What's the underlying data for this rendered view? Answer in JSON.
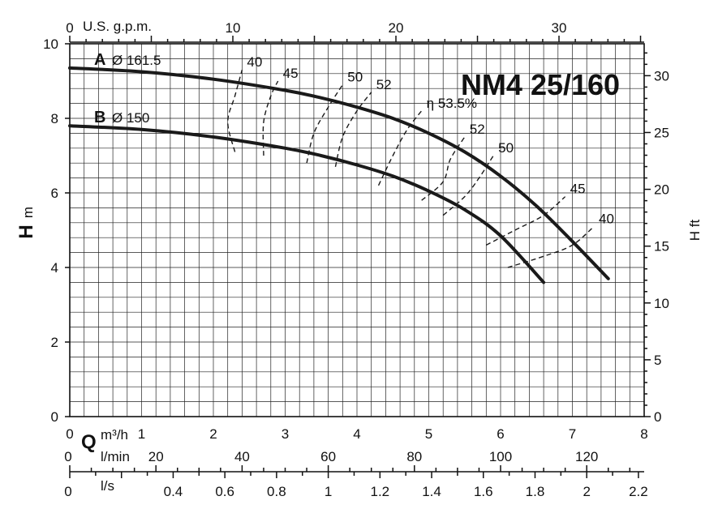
{
  "chart_data": {
    "type": "line",
    "title": "NM4 25/160",
    "x_axis": {
      "label_symbol": "Q",
      "unit": "m³/h",
      "range": [
        0,
        8
      ],
      "ticks": [
        0,
        1,
        2,
        3,
        4,
        5,
        6,
        7,
        8
      ],
      "tick_labels": [
        "0",
        "1",
        "2",
        "3",
        "4",
        "5",
        "6",
        "7",
        "8"
      ]
    },
    "y_axis": {
      "label_symbol": "H",
      "unit": "m",
      "range": [
        0,
        10
      ],
      "ticks": [
        0,
        2,
        4,
        6,
        8,
        10
      ],
      "tick_labels": [
        "0",
        "2",
        "4",
        "6",
        "8",
        "10"
      ]
    },
    "y2_axis": {
      "label": "H ft",
      "ticks": [
        0,
        5,
        10,
        15,
        20,
        25,
        30
      ],
      "tick_labels": [
        "0",
        "5",
        "10",
        "15",
        "20",
        "25",
        "30"
      ]
    },
    "top_axis": {
      "label": "U.S. g.p.m.",
      "ticks": [
        0,
        10,
        20,
        30
      ],
      "tick_labels": [
        "0",
        "10",
        "20",
        "30"
      ]
    },
    "lmin_axis": {
      "label": "l/min",
      "ticks": [
        0,
        20,
        40,
        60,
        80,
        100,
        120
      ],
      "tick_labels": [
        "0",
        "20",
        "40",
        "60",
        "80",
        "100",
        "120"
      ]
    },
    "ls_axis": {
      "label": "l/s",
      "ticks": [
        0,
        0.4,
        0.6,
        0.8,
        1,
        1.2,
        1.4,
        1.6,
        1.8,
        2,
        2.2
      ],
      "tick_labels": [
        "0",
        "0.4",
        "0.6",
        "0.8",
        "1",
        "1.2",
        "1.4",
        "1.6",
        "1.8",
        "2",
        "2.2"
      ]
    },
    "grid": true,
    "series": [
      {
        "name": "A",
        "diameter_label": "Ø 161.5",
        "x": [
          0,
          1,
          2,
          3,
          3.5,
          4,
          4.5,
          5,
          5.5,
          6,
          6.5,
          7,
          7.5
        ],
        "y": [
          9.35,
          9.25,
          9.05,
          8.75,
          8.55,
          8.3,
          8.0,
          7.6,
          7.1,
          6.45,
          5.65,
          4.7,
          3.7
        ]
      },
      {
        "name": "B",
        "diameter_label": "Ø 150",
        "x": [
          0,
          1,
          2,
          3,
          3.5,
          4,
          4.5,
          5,
          5.5,
          6,
          6.6
        ],
        "y": [
          7.8,
          7.7,
          7.5,
          7.2,
          7.0,
          6.75,
          6.45,
          6.05,
          5.55,
          4.85,
          3.6
        ]
      }
    ],
    "efficiency_curves": [
      {
        "label": "40",
        "x": [
          2.3,
          2.2,
          2.3,
          2.4
        ],
        "y": [
          7.1,
          7.9,
          8.6,
          9.3
        ]
      },
      {
        "label": "45",
        "x": [
          2.7,
          2.7,
          2.8,
          2.9
        ],
        "y": [
          7.0,
          7.9,
          8.6,
          9.0
        ]
      },
      {
        "label": "50",
        "x": [
          3.3,
          3.4,
          3.6,
          3.8
        ],
        "y": [
          6.8,
          7.6,
          8.3,
          8.9
        ]
      },
      {
        "label": "52",
        "x": [
          3.7,
          3.8,
          4.0,
          4.2
        ],
        "y": [
          6.7,
          7.5,
          8.2,
          8.7
        ]
      },
      {
        "label": "η 53.5%",
        "x": [
          4.3,
          4.5,
          4.7,
          4.9
        ],
        "y": [
          6.2,
          7.0,
          7.7,
          8.2
        ]
      },
      {
        "label": "52",
        "x": [
          4.9,
          5.2,
          5.3,
          5.5
        ],
        "y": [
          5.8,
          6.3,
          6.9,
          7.5
        ]
      },
      {
        "label": "50",
        "x": [
          5.2,
          5.5,
          5.7,
          5.9
        ],
        "y": [
          5.4,
          5.9,
          6.4,
          7.0
        ]
      },
      {
        "label": "45",
        "x": [
          5.8,
          6.2,
          6.6,
          6.9
        ],
        "y": [
          4.6,
          5.0,
          5.4,
          5.9
        ]
      },
      {
        "label": "40",
        "x": [
          6.1,
          6.6,
          7.0,
          7.3
        ],
        "y": [
          4.0,
          4.3,
          4.6,
          5.1
        ]
      }
    ]
  }
}
